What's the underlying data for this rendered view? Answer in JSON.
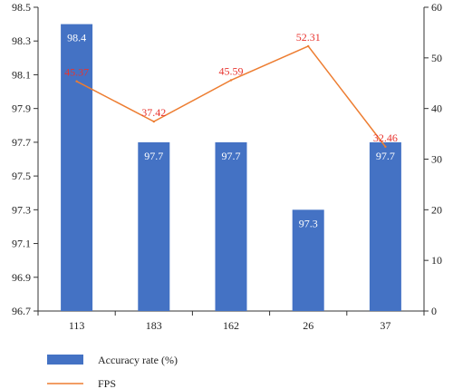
{
  "chart_data": {
    "type": "bar",
    "categories": [
      "113",
      "183",
      "162",
      "26",
      "37"
    ],
    "series": [
      {
        "name": "Accuracy rate (%)",
        "type": "bar",
        "axis": "left",
        "values": [
          98.4,
          97.7,
          97.7,
          97.3,
          97.7
        ],
        "labels": [
          "98.4",
          "97.7",
          "97.7",
          "97.3",
          "97.7"
        ],
        "color": "#4472C4",
        "label_color": "#ffffff"
      },
      {
        "name": "FPS",
        "type": "line",
        "axis": "right",
        "values": [
          45.37,
          37.42,
          45.59,
          52.31,
          32.46
        ],
        "labels": [
          "45.37",
          "37.42",
          "45.59",
          "52.31",
          "32.46"
        ],
        "color": "#ED7D31",
        "label_color": "#E8342F"
      }
    ],
    "y_left": {
      "ylim": [
        96.7,
        98.5
      ],
      "ticks": [
        "96.7",
        "96.9",
        "97.1",
        "97.3",
        "97.5",
        "97.7",
        "97.9",
        "98.1",
        "98.3",
        "98.5"
      ]
    },
    "y_right": {
      "ylim": [
        0,
        60
      ],
      "ticks": [
        "0",
        "10",
        "20",
        "30",
        "40",
        "50",
        "60"
      ]
    },
    "grid": false,
    "legend_position": "bottom-left"
  }
}
